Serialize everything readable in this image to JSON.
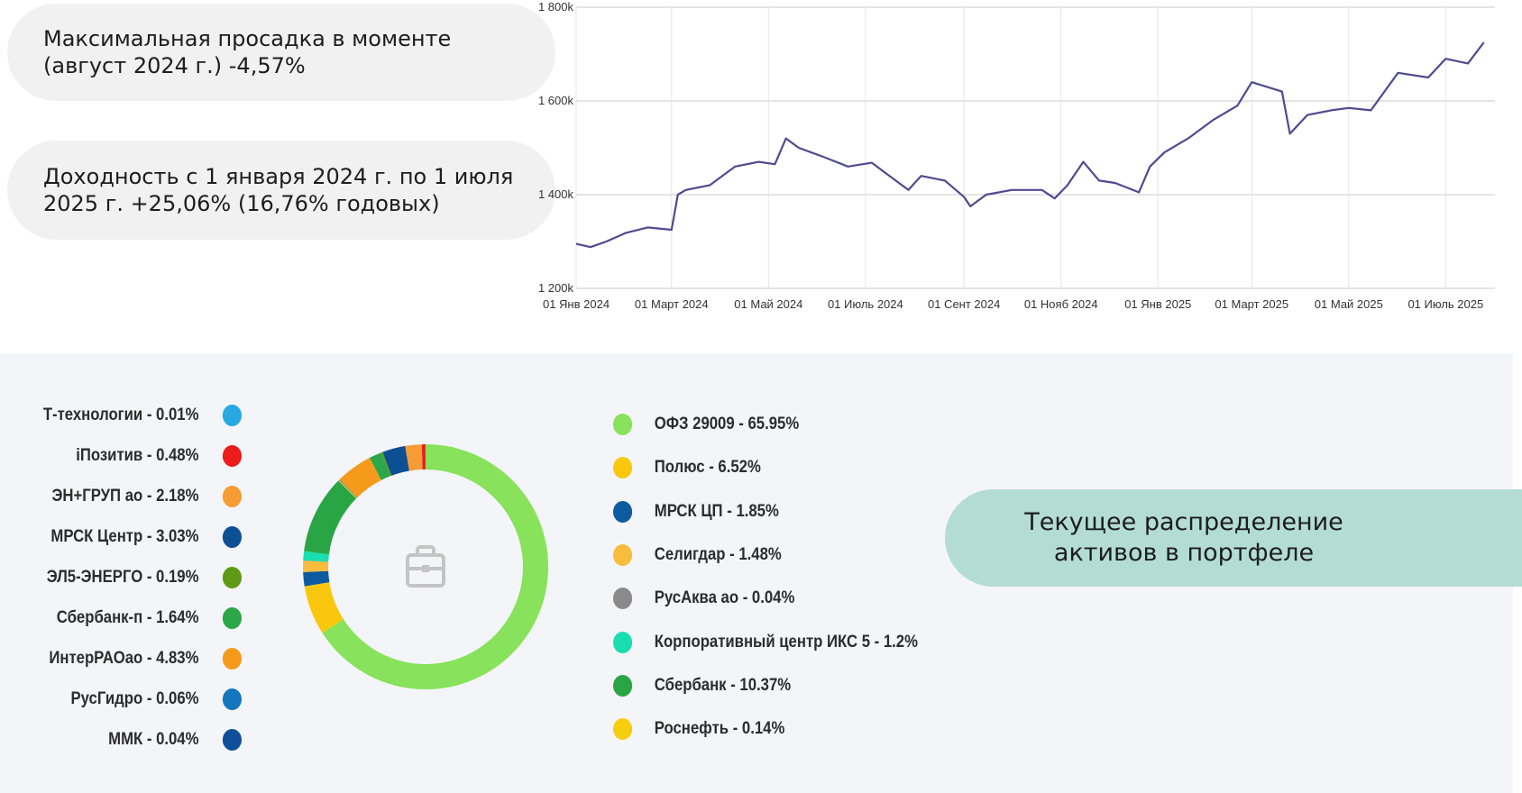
{
  "stats": {
    "drawdown": "Максимальная просадка в моменте (август 2024 г.) -4,57%",
    "yield": "Доходность с 1 января 2024 г. по 1 июля 2025 г. +25,06% (16,76% годовых)"
  },
  "caption": "Текущее распределение активов в портфеле",
  "colors": {
    "line": "#4f4a91",
    "grid": "#c8c8c8",
    "caption_bg": "#b3ddd4",
    "pill_bg": "#f1f1f1"
  },
  "icons": {
    "donut_center": "briefcase-icon"
  },
  "chart_data": [
    {
      "type": "line",
      "title": "",
      "x_ticks": [
        "01 Янв 2024",
        "01 Март 2024",
        "01 Май 2024",
        "01 Июль 2024",
        "01 Сент 2024",
        "01 Нояб 2024",
        "01 Янв 2025",
        "01 Март 2025",
        "01 Май 2025",
        "01 Июль 2025"
      ],
      "y_ticks": [
        "1 200k",
        "1 400k",
        "1 600k",
        "1 800k"
      ],
      "ylim": [
        1200000,
        1800000
      ],
      "xlim": [
        "2024-01-01",
        "2025-08-01"
      ],
      "grid": "horizontal",
      "series": [
        {
          "x": [
            "2024-01-01",
            "2024-01-10",
            "2024-01-20",
            "2024-02-01",
            "2024-02-15",
            "2024-03-01",
            "2024-03-05",
            "2024-03-10",
            "2024-03-25",
            "2024-04-10",
            "2024-04-25",
            "2024-05-05",
            "2024-05-12",
            "2024-05-20",
            "2024-06-05",
            "2024-06-20",
            "2024-07-05",
            "2024-07-20",
            "2024-07-28",
            "2024-08-05",
            "2024-08-20",
            "2024-09-01",
            "2024-09-05",
            "2024-09-15",
            "2024-10-01",
            "2024-10-20",
            "2024-10-28",
            "2024-11-05",
            "2024-11-15",
            "2024-11-25",
            "2024-12-05",
            "2024-12-20",
            "2024-12-27",
            "2025-01-05",
            "2025-01-20",
            "2025-02-05",
            "2025-02-20",
            "2025-03-01",
            "2025-03-20",
            "2025-03-25",
            "2025-04-05",
            "2025-04-20",
            "2025-05-01",
            "2025-05-15",
            "2025-06-01",
            "2025-06-20",
            "2025-07-01",
            "2025-07-15",
            "2025-07-25"
          ],
          "y": [
            1295000,
            1288000,
            1300000,
            1318000,
            1330000,
            1325000,
            1400000,
            1410000,
            1420000,
            1460000,
            1470000,
            1465000,
            1520000,
            1500000,
            1480000,
            1460000,
            1468000,
            1430000,
            1410000,
            1440000,
            1430000,
            1395000,
            1375000,
            1400000,
            1410000,
            1410000,
            1392000,
            1420000,
            1470000,
            1430000,
            1425000,
            1405000,
            1460000,
            1490000,
            1520000,
            1560000,
            1590000,
            1640000,
            1620000,
            1530000,
            1570000,
            1580000,
            1585000,
            1580000,
            1660000,
            1650000,
            1690000,
            1680000,
            1725000
          ]
        }
      ]
    },
    {
      "type": "pie",
      "title": "",
      "donut": true,
      "categories": [
        "ОФЗ 29009",
        "Полюс",
        "МРСК ЦП",
        "Селигдар",
        "РусАква ао",
        "Корпоративный центр ИКС 5",
        "Сбербанк",
        "Роснефть",
        "ММК",
        "РусГидро",
        "ИнтерРАОао",
        "Сбербанк-п",
        "ЭЛ5-ЭНЕРГО",
        "МРСК Центр",
        "ЭН+ГРУП ао",
        "iПозитив",
        "Т-технологии"
      ],
      "labels": [
        "ОФЗ 29009 - 65.95%",
        "Полюс - 6.52%",
        "МРСК ЦП - 1.85%",
        "Селигдар - 1.48%",
        "РусАква ао - 0.04%",
        "Корпоративный центр ИКС 5 - 1.2%",
        "Сбербанк - 10.37%",
        "Роснефть - 0.14%",
        "ММК - 0.04%",
        "РусГидро - 0.06%",
        "ИнтерРАОао - 4.83%",
        "Сбербанк-п - 1.64%",
        "ЭЛ5-ЭНЕРГО - 0.19%",
        "МРСК Центр - 3.03%",
        "ЭН+ГРУП ао - 2.18%",
        "iПозитив - 0.48%",
        "Т-технологии - 0.01%"
      ],
      "values": [
        65.95,
        6.52,
        1.85,
        1.48,
        0.04,
        1.2,
        10.37,
        0.14,
        0.04,
        0.06,
        4.83,
        1.64,
        0.19,
        3.03,
        2.18,
        0.48,
        0.01
      ],
      "colors": [
        "#88e25b",
        "#f9c80e",
        "#0e5aa0",
        "#f9bd3e",
        "#8a8a8a",
        "#19dfae",
        "#2aa545",
        "#f6ce10",
        "#0f4f98",
        "#1476bd",
        "#f59a1b",
        "#2ba648",
        "#5e9a16",
        "#0d4f93",
        "#f59c35",
        "#ed1c1c",
        "#27a8e0"
      ],
      "legend_left": [
        {
          "label": "Т-технологии - 0.01%",
          "color": "#27a8e0"
        },
        {
          "label": "iПозитив - 0.48%",
          "color": "#ed1c1c"
        },
        {
          "label": "ЭН+ГРУП ао - 2.18%",
          "color": "#f59c35"
        },
        {
          "label": "МРСК Центр - 3.03%",
          "color": "#0d4f93"
        },
        {
          "label": "ЭЛ5-ЭНЕРГО - 0.19%",
          "color": "#5e9a16"
        },
        {
          "label": "Сбербанк-п - 1.64%",
          "color": "#2ba648"
        },
        {
          "label": "ИнтерРАОао - 4.83%",
          "color": "#f59a1b"
        },
        {
          "label": "РусГидро - 0.06%",
          "color": "#1476bd"
        },
        {
          "label": "ММК - 0.04%",
          "color": "#0f4f98"
        }
      ],
      "legend_right": [
        {
          "label": "ОФЗ 29009 - 65.95%",
          "color": "#88e25b"
        },
        {
          "label": "Полюс - 6.52%",
          "color": "#f9c80e"
        },
        {
          "label": "МРСК ЦП - 1.85%",
          "color": "#0e5aa0"
        },
        {
          "label": "Селигдар - 1.48%",
          "color": "#f9bd3e"
        },
        {
          "label": "РусАква ао - 0.04%",
          "color": "#8a8a8a"
        },
        {
          "label": "Корпоративный центр ИКС 5 - 1.2%",
          "color": "#19dfae"
        },
        {
          "label": "Сбербанк - 10.37%",
          "color": "#2aa545"
        },
        {
          "label": "Роснефть - 0.14%",
          "color": "#f6ce10"
        }
      ]
    }
  ]
}
